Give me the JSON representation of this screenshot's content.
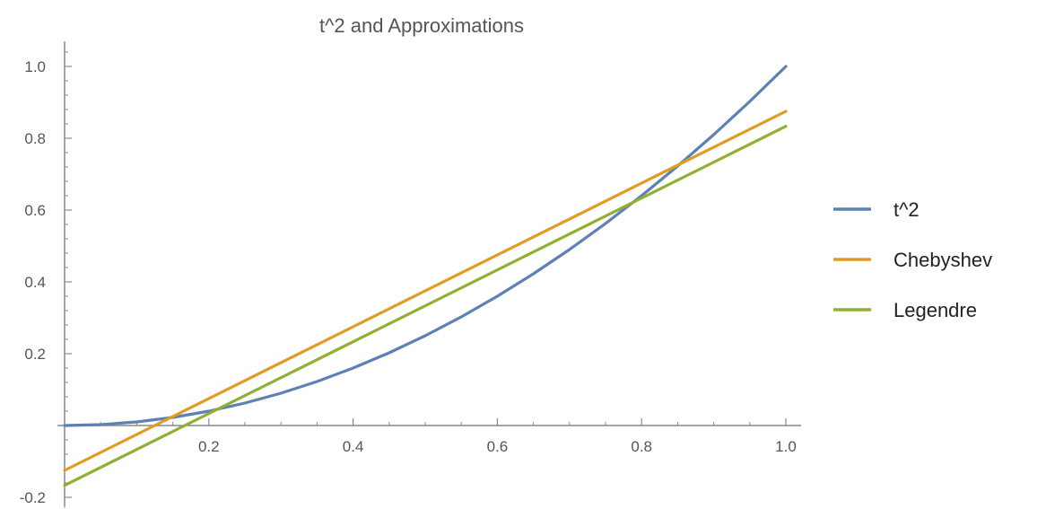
{
  "chart_data": {
    "type": "line",
    "title": "t^2 and Approximations",
    "xlabel": "",
    "ylabel": "",
    "xlim": [
      0,
      1
    ],
    "ylim": [
      -0.2,
      1.0
    ],
    "x_ticks": [
      0.2,
      0.4,
      0.6,
      0.8,
      1.0
    ],
    "x_tick_labels": [
      "0.2",
      "0.4",
      "0.6",
      "0.8",
      "1.0"
    ],
    "y_ticks": [
      -0.2,
      0.2,
      0.4,
      0.6,
      0.8,
      1.0
    ],
    "y_tick_labels": [
      "-0.2",
      "0.2",
      "0.4",
      "0.6",
      "0.8",
      "1.0"
    ],
    "grid": false,
    "legend_position": "right",
    "series": [
      {
        "name": "t^2",
        "color": "#5e81b5",
        "x": [
          0,
          0.05,
          0.1,
          0.15,
          0.2,
          0.25,
          0.3,
          0.35,
          0.4,
          0.45,
          0.5,
          0.55,
          0.6,
          0.65,
          0.7,
          0.75,
          0.8,
          0.85,
          0.9,
          0.95,
          1.0
        ],
        "y": [
          0,
          0.0025,
          0.01,
          0.0225,
          0.04,
          0.0625,
          0.09,
          0.1225,
          0.16,
          0.2025,
          0.25,
          0.3025,
          0.36,
          0.4225,
          0.49,
          0.5625,
          0.64,
          0.7225,
          0.81,
          0.9025,
          1.0
        ]
      },
      {
        "name": "Chebyshev",
        "color": "#e19c24",
        "x": [
          0,
          1.0
        ],
        "y": [
          -0.125,
          0.875
        ]
      },
      {
        "name": "Legendre",
        "color": "#8fb032",
        "x": [
          0,
          1.0
        ],
        "y": [
          -0.1667,
          0.8333
        ]
      }
    ]
  }
}
